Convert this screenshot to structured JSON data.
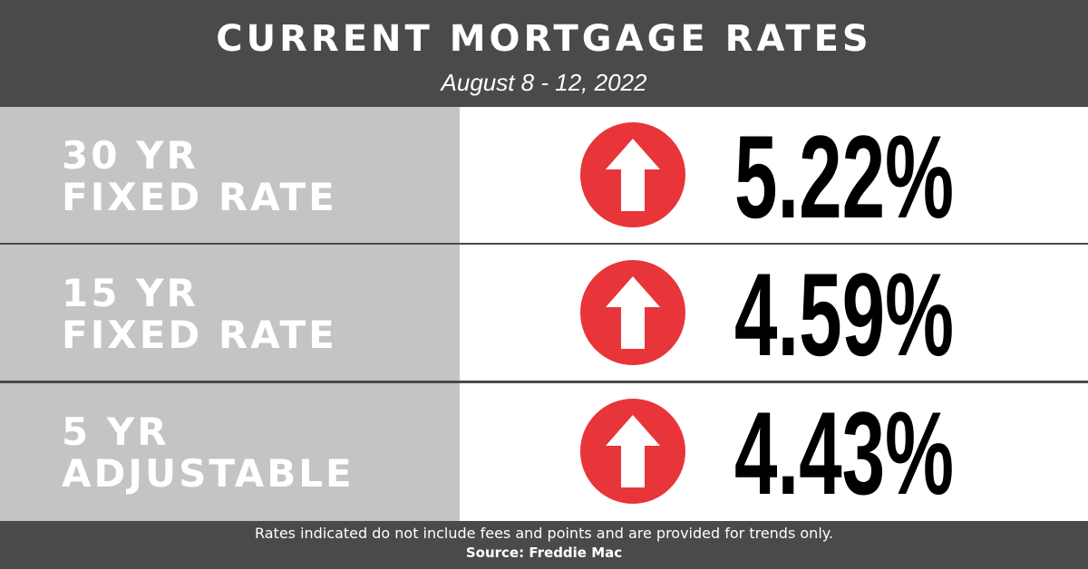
{
  "header": {
    "title": "CURRENT MORTGAGE RATES",
    "subtitle": "August 8 - 12, 2022"
  },
  "rows": [
    {
      "label": [
        "30 YR",
        "FIXED RATE"
      ],
      "rate": "5.22%"
    },
    {
      "label": [
        "15 YR",
        "FIXED RATE"
      ],
      "rate": "4.59%"
    },
    {
      "label": [
        "5 YR",
        "ADJUSTABLE"
      ],
      "rate": "4.43%"
    }
  ],
  "footer": {
    "note": "Rates indicated do not include fees and points and are provided for trends only.",
    "source": "Source: Freddie Mac"
  }
}
